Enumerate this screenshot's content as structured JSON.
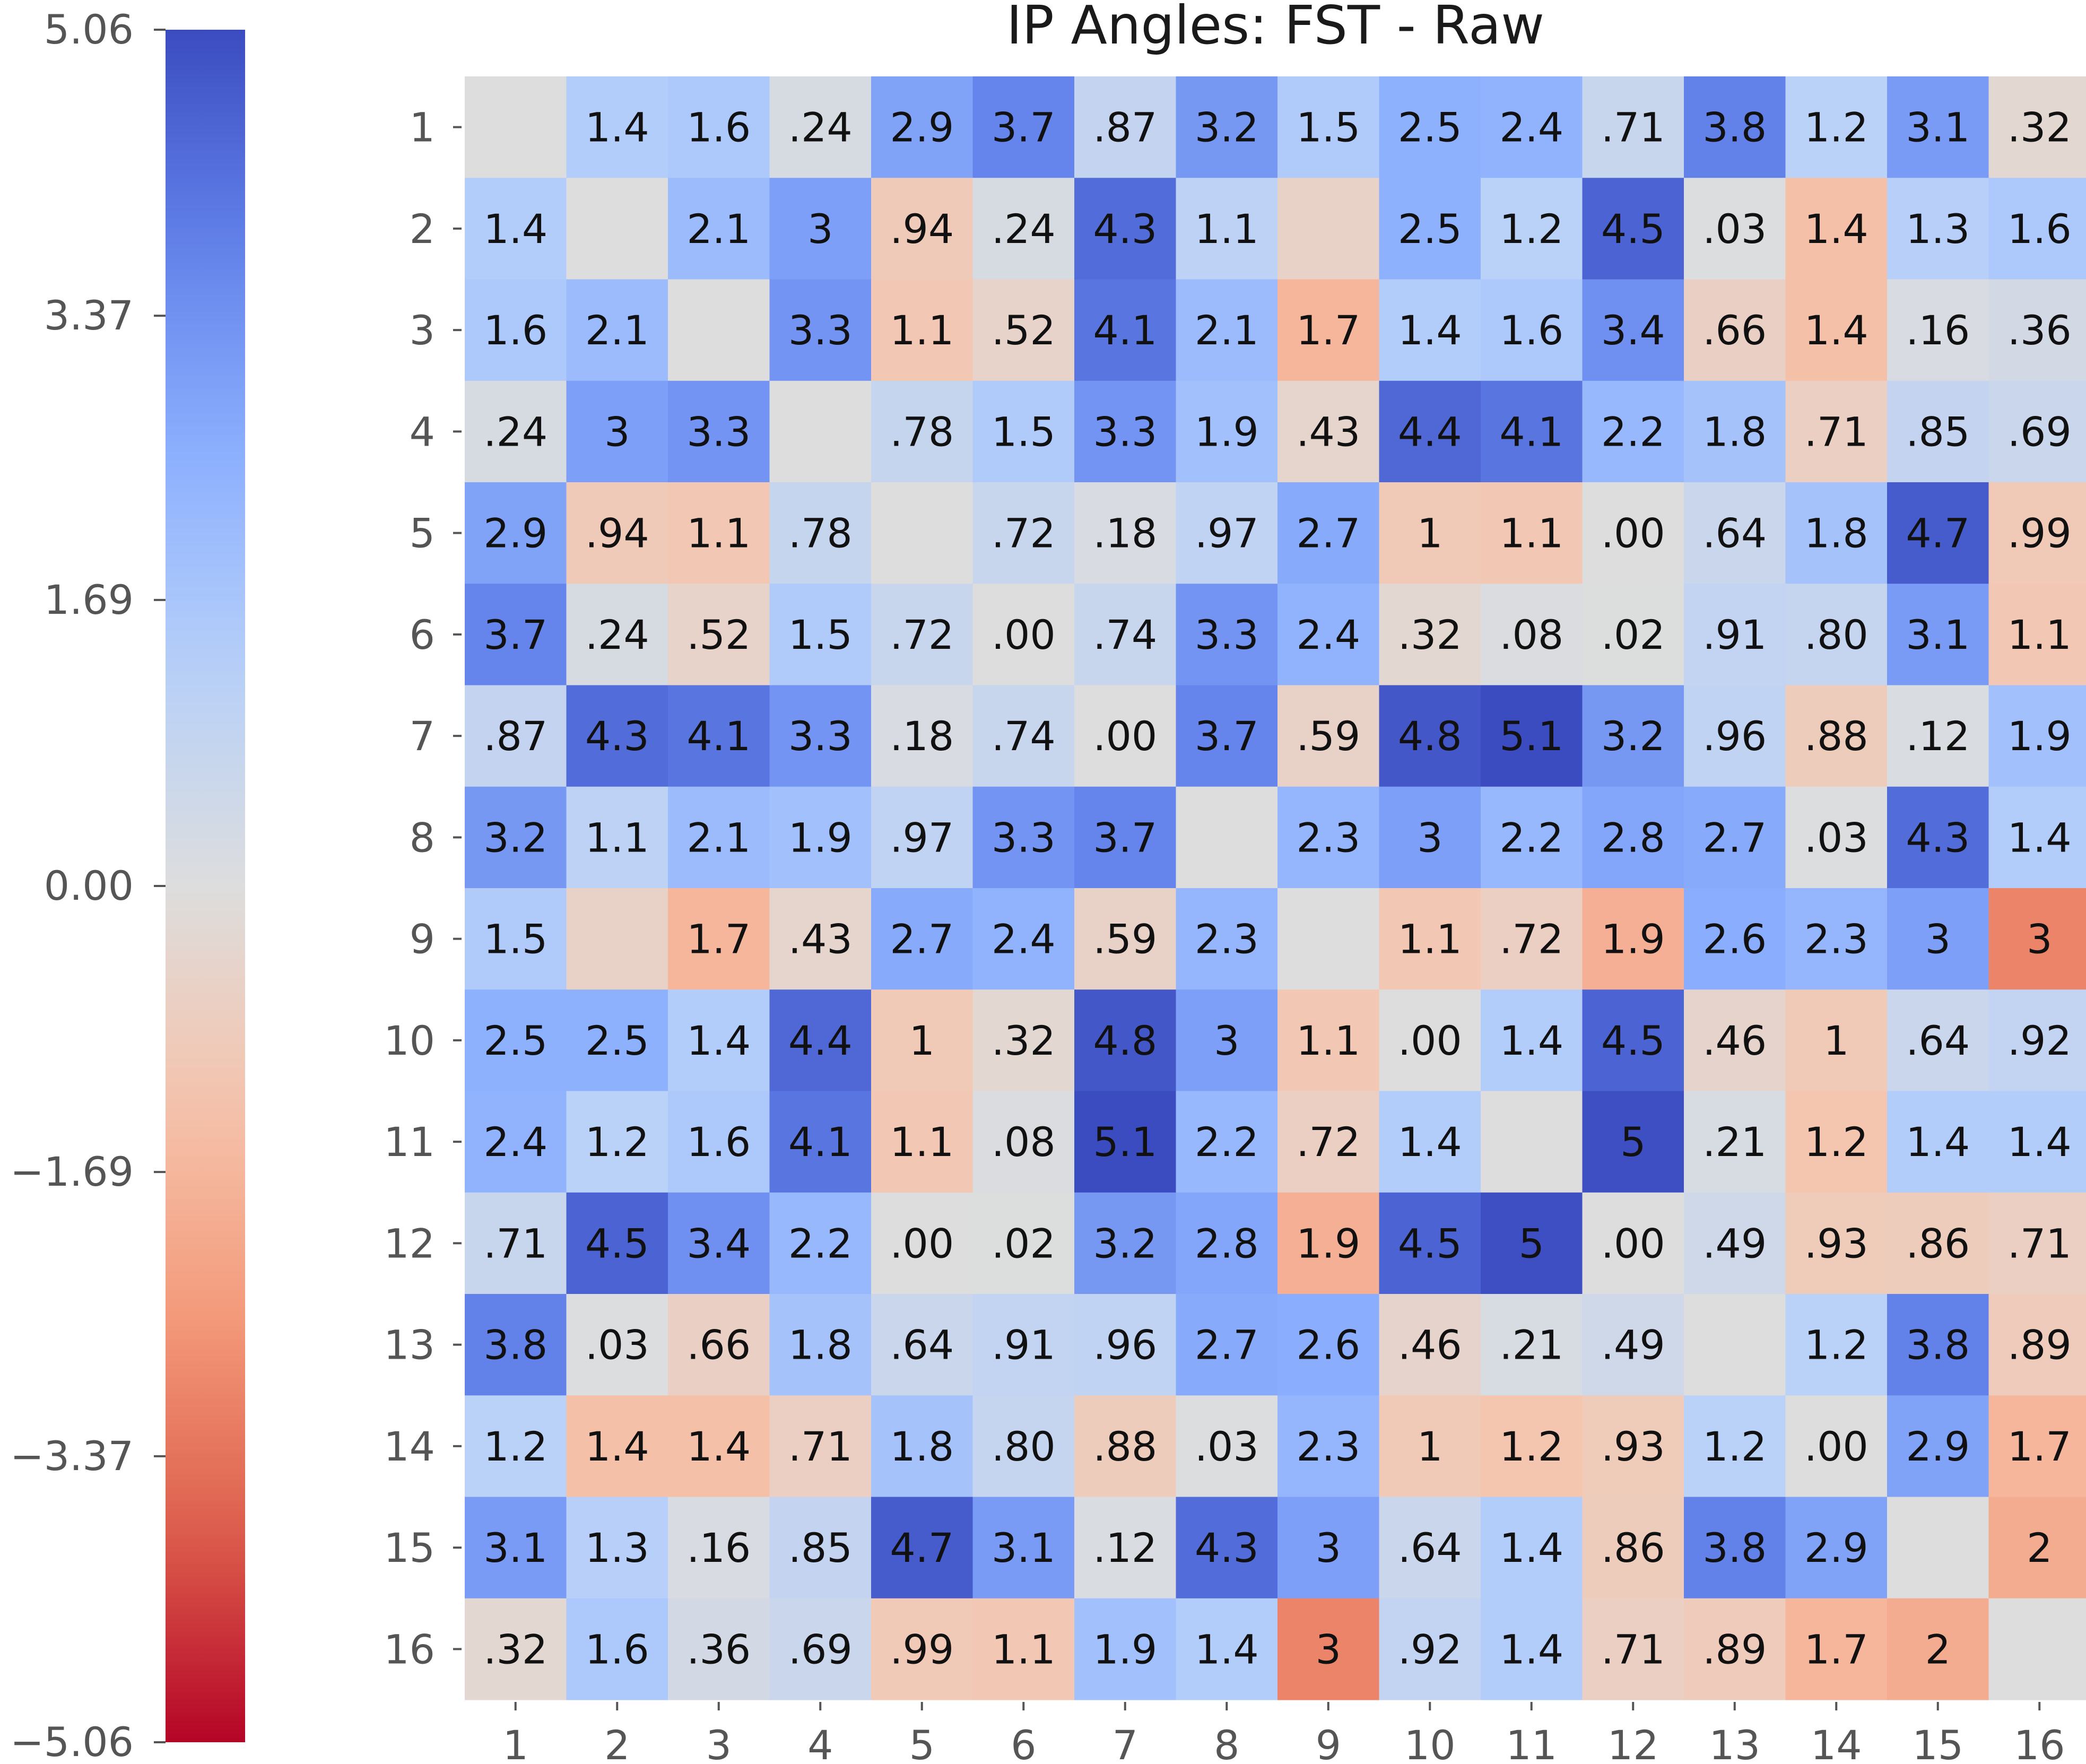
{
  "chart_data": {
    "type": "heatmap",
    "title": "IP Angles: FST - Raw",
    "row_labels": [
      "1",
      "2",
      "3",
      "4",
      "5",
      "6",
      "7",
      "8",
      "9",
      "10",
      "11",
      "12",
      "13",
      "14",
      "15",
      "16"
    ],
    "col_labels": [
      "1",
      "2",
      "3",
      "4",
      "5",
      "6",
      "7",
      "8",
      "9",
      "10",
      "11",
      "12",
      "13",
      "14",
      "15",
      "16"
    ],
    "cells": [
      [
        "",
        "1.4",
        "1.6",
        ".24",
        "2.9",
        "3.7",
        ".87",
        "3.2",
        "1.5",
        "2.5",
        "2.4",
        ".71",
        "3.8",
        "1.2",
        "3.1",
        ".32"
      ],
      [
        "1.4",
        "",
        "2.1",
        "3",
        ".94",
        ".24",
        "4.3",
        "1.1",
        "",
        "2.5",
        "1.2",
        "4.5",
        ".03",
        "1.4",
        "1.3",
        "1.6"
      ],
      [
        "1.6",
        "2.1",
        "",
        "3.3",
        "1.1",
        ".52",
        "4.1",
        "2.1",
        "1.7",
        "1.4",
        "1.6",
        "3.4",
        ".66",
        "1.4",
        ".16",
        ".36"
      ],
      [
        ".24",
        "3",
        "3.3",
        "",
        ".78",
        "1.5",
        "3.3",
        "1.9",
        ".43",
        "4.4",
        "4.1",
        "2.2",
        "1.8",
        ".71",
        ".85",
        ".69"
      ],
      [
        "2.9",
        ".94",
        "1.1",
        ".78",
        "",
        ".72",
        ".18",
        ".97",
        "2.7",
        "1",
        "1.1",
        ".00",
        ".64",
        "1.8",
        "4.7",
        ".99"
      ],
      [
        "3.7",
        ".24",
        ".52",
        "1.5",
        ".72",
        ".00",
        ".74",
        "3.3",
        "2.4",
        ".32",
        ".08",
        ".02",
        ".91",
        ".80",
        "3.1",
        "1.1"
      ],
      [
        ".87",
        "4.3",
        "4.1",
        "3.3",
        ".18",
        ".74",
        ".00",
        "3.7",
        ".59",
        "4.8",
        "5.1",
        "3.2",
        ".96",
        ".88",
        ".12",
        "1.9"
      ],
      [
        "3.2",
        "1.1",
        "2.1",
        "1.9",
        ".97",
        "3.3",
        "3.7",
        "",
        "2.3",
        "3",
        "2.2",
        "2.8",
        "2.7",
        ".03",
        "4.3",
        "1.4"
      ],
      [
        "1.5",
        "",
        "1.7",
        ".43",
        "2.7",
        "2.4",
        ".59",
        "2.3",
        "",
        "1.1",
        ".72",
        "1.9",
        "2.6",
        "2.3",
        "3",
        "3"
      ],
      [
        "2.5",
        "2.5",
        "1.4",
        "4.4",
        "1",
        ".32",
        "4.8",
        "3",
        "1.1",
        ".00",
        "1.4",
        "4.5",
        ".46",
        "1",
        ".64",
        ".92"
      ],
      [
        "2.4",
        "1.2",
        "1.6",
        "4.1",
        "1.1",
        ".08",
        "5.1",
        "2.2",
        ".72",
        "1.4",
        "",
        "5",
        ".21",
        "1.2",
        "1.4",
        "1.4"
      ],
      [
        ".71",
        "4.5",
        "3.4",
        "2.2",
        ".00",
        ".02",
        "3.2",
        "2.8",
        "1.9",
        "4.5",
        "5",
        ".00",
        ".49",
        ".93",
        ".86",
        ".71"
      ],
      [
        "3.8",
        ".03",
        ".66",
        "1.8",
        ".64",
        ".91",
        ".96",
        "2.7",
        "2.6",
        ".46",
        ".21",
        ".49",
        "",
        "1.2",
        "3.8",
        ".89"
      ],
      [
        "1.2",
        "1.4",
        "1.4",
        ".71",
        "1.8",
        ".80",
        ".88",
        ".03",
        "2.3",
        "1",
        "1.2",
        ".93",
        "1.2",
        ".00",
        "2.9",
        "1.7"
      ],
      [
        "3.1",
        "1.3",
        ".16",
        ".85",
        "4.7",
        "3.1",
        ".12",
        "4.3",
        "3",
        ".64",
        "1.4",
        ".86",
        "3.8",
        "2.9",
        "",
        "2"
      ],
      [
        ".32",
        "1.6",
        ".36",
        ".69",
        ".99",
        "1.1",
        "1.9",
        "1.4",
        "3",
        ".92",
        "1.4",
        ".71",
        ".89",
        "1.7",
        "2",
        ""
      ]
    ],
    "values": [
      [
        0,
        1.4,
        1.6,
        0.24,
        2.9,
        3.7,
        0.87,
        3.2,
        1.5,
        2.5,
        2.4,
        0.71,
        3.8,
        1.2,
        3.1,
        -0.32
      ],
      [
        1.4,
        0,
        2.1,
        3,
        -0.94,
        0.24,
        4.3,
        1.1,
        -0.6,
        2.5,
        1.2,
        4.5,
        0.03,
        -1.4,
        1.3,
        1.6
      ],
      [
        1.6,
        2.1,
        0,
        3.3,
        -1.1,
        -0.52,
        4.1,
        2.1,
        -1.7,
        1.4,
        1.6,
        3.4,
        -0.66,
        -1.4,
        0.16,
        0.36
      ],
      [
        0.24,
        3,
        3.3,
        0,
        0.78,
        1.5,
        3.3,
        1.9,
        -0.43,
        4.4,
        4.1,
        2.2,
        1.8,
        -0.71,
        0.85,
        0.69
      ],
      [
        2.9,
        -0.94,
        -1.1,
        0.78,
        0,
        0.72,
        0.18,
        0.97,
        2.7,
        -1,
        -1.1,
        0,
        0.64,
        1.8,
        4.7,
        -0.99
      ],
      [
        3.7,
        0.24,
        -0.52,
        1.5,
        0.72,
        0,
        0.74,
        3.3,
        2.4,
        -0.32,
        0.08,
        0.02,
        0.91,
        0.8,
        3.1,
        -1.1
      ],
      [
        0.87,
        4.3,
        4.1,
        3.3,
        0.18,
        0.74,
        0,
        3.7,
        -0.59,
        4.8,
        5.1,
        3.2,
        0.96,
        -0.88,
        0.12,
        1.9
      ],
      [
        3.2,
        1.1,
        2.1,
        1.9,
        0.97,
        3.3,
        3.7,
        0,
        2.3,
        3,
        2.2,
        2.8,
        2.7,
        0.03,
        4.3,
        1.4
      ],
      [
        1.5,
        -0.6,
        -1.7,
        -0.43,
        2.7,
        2.4,
        -0.59,
        2.3,
        0,
        -1.1,
        -0.72,
        -1.9,
        2.6,
        2.3,
        3,
        -3
      ],
      [
        2.5,
        2.5,
        1.4,
        4.4,
        -1,
        -0.32,
        4.8,
        3,
        -1.1,
        0,
        1.4,
        4.5,
        -0.46,
        -1,
        0.64,
        0.92
      ],
      [
        2.4,
        1.2,
        1.6,
        4.1,
        -1.1,
        0.08,
        5.1,
        2.2,
        -0.72,
        1.4,
        0,
        5,
        0.21,
        -1.2,
        1.4,
        1.4
      ],
      [
        0.71,
        4.5,
        3.4,
        2.2,
        0,
        0.02,
        3.2,
        2.8,
        -1.9,
        4.5,
        5,
        0,
        0.49,
        -0.93,
        -0.86,
        -0.71
      ],
      [
        3.8,
        0.03,
        -0.66,
        1.8,
        0.64,
        0.91,
        0.96,
        2.7,
        2.6,
        -0.46,
        0.21,
        0.49,
        0,
        1.2,
        3.8,
        -0.89
      ],
      [
        1.2,
        -1.4,
        -1.4,
        -0.71,
        1.8,
        0.8,
        -0.88,
        0.03,
        2.3,
        -1,
        -1.2,
        -0.93,
        1.2,
        0,
        2.9,
        -1.7
      ],
      [
        3.1,
        1.3,
        0.16,
        0.85,
        4.7,
        3.1,
        0.12,
        4.3,
        3,
        0.64,
        1.4,
        -0.86,
        3.8,
        2.9,
        0,
        -2
      ],
      [
        -0.32,
        1.6,
        0.36,
        0.69,
        -0.99,
        -1.1,
        1.9,
        1.4,
        -3,
        0.92,
        1.4,
        -0.71,
        -0.89,
        -1.7,
        -2,
        0
      ]
    ],
    "vmin": -5.06,
    "vmax": 5.06,
    "colormap": "coolwarm_r",
    "colorbar_ticks": [
      "5.06",
      "3.37",
      "1.69",
      "0.00",
      "−1.69",
      "−3.37",
      "−5.06"
    ],
    "colorbar_tick_values": [
      5.06,
      3.37,
      1.69,
      0.0,
      -1.69,
      -3.37,
      -5.06
    ],
    "colorbar_position": "left"
  }
}
